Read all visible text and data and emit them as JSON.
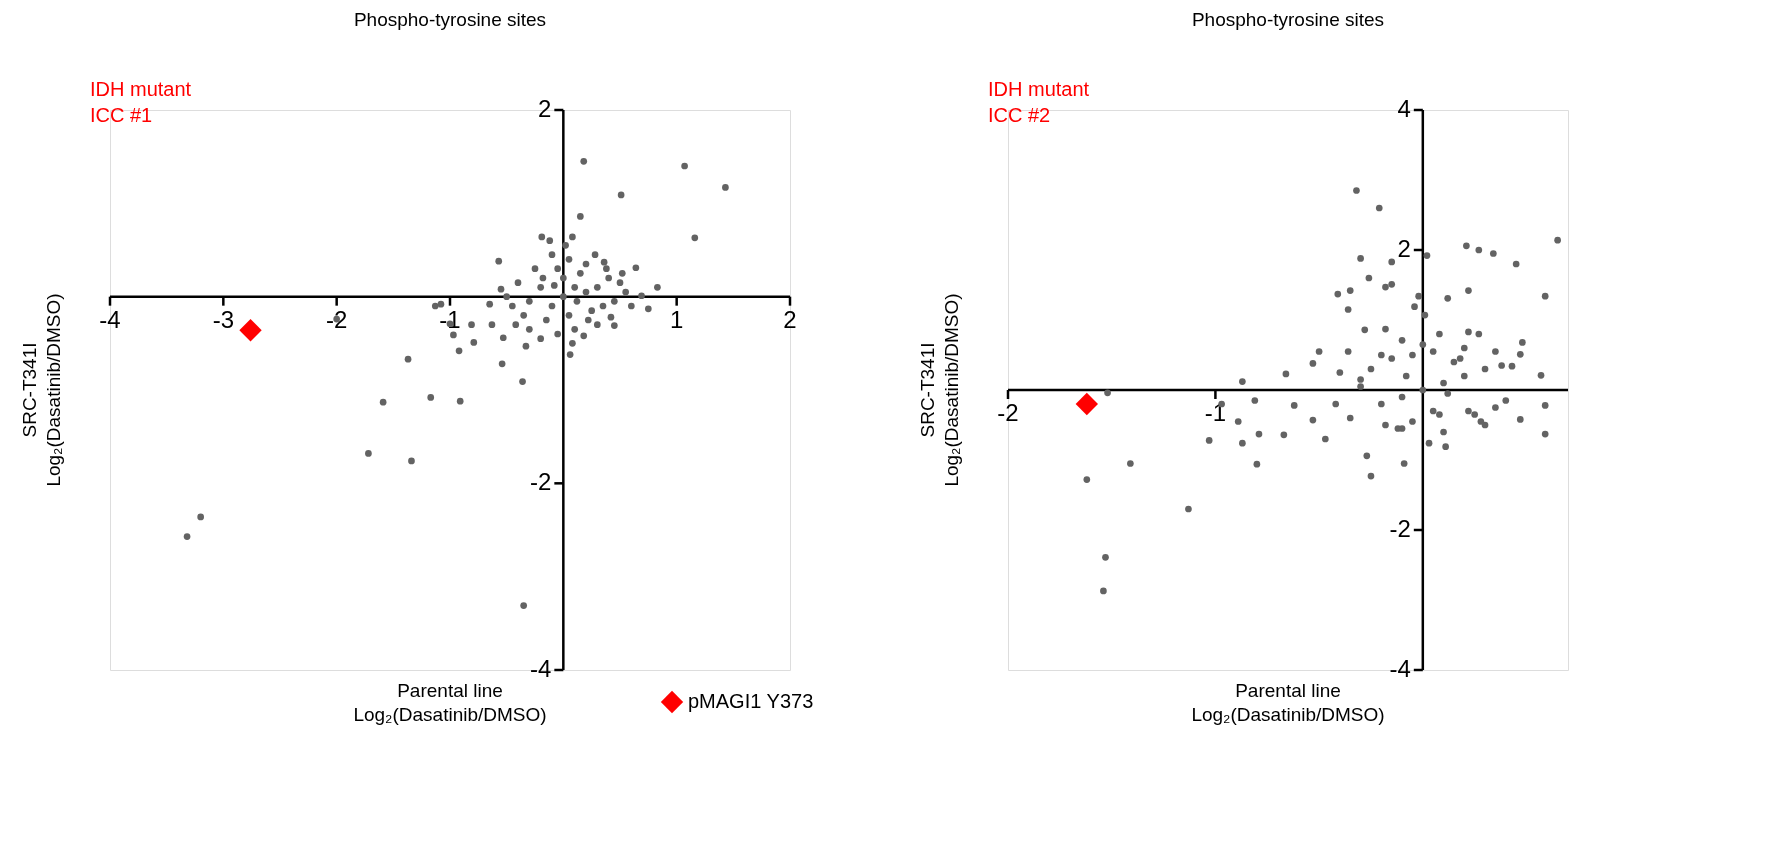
{
  "chart_data": [
    {
      "type": "scatter",
      "title": "Phospho-tyrosine sites",
      "xlabel": "Parental line\nLog₂(Dasatinib/DMSO)",
      "ylabel": "SRC-T341I\nLog₂(Dasatinib/DMSO)",
      "annotations": [
        "IDH mutant\nICC #1"
      ],
      "xlim": [
        -4,
        2
      ],
      "ylim": [
        -4,
        2
      ],
      "xticks": [
        -4,
        -3,
        -2,
        -1,
        1,
        2
      ],
      "yticks": [
        -4,
        -2,
        2
      ],
      "grid": false,
      "legend": "bottom right",
      "series": [
        {
          "color": "#636363",
          "marker": "circle",
          "x": [
            0.18,
            1.07,
            1.43,
            0.51,
            0.15,
            1.16,
            -0.19,
            0.08,
            -0.57,
            0.64,
            0.83,
            0.36,
            0.75,
            0.69,
            0.45,
            -0.65,
            -0.55,
            -1.13,
            -1.08,
            -2.0,
            -1.0,
            -0.97,
            -0.81,
            -0.79,
            -0.92,
            -0.63,
            -0.53,
            -0.54,
            -0.33,
            -0.36,
            0.06,
            -1.37,
            -1.59,
            -1.17,
            -0.91,
            -1.72,
            -1.34,
            -3.2,
            -3.32,
            -0.35,
            0,
            0.1,
            -0.1,
            0.2,
            -0.2,
            0.05,
            0.3,
            -0.3,
            0.15,
            -0.05,
            0.25,
            -0.15,
            0.4,
            -0.4,
            0.35,
            -0.35,
            0.05,
            -0.1,
            0.2,
            -0.25,
            0.1,
            -0.05,
            0.3,
            -0.3,
            0.5,
            0.55,
            0.45,
            -0.45,
            -0.5,
            0.0,
            0.12,
            -0.08,
            0.22,
            -0.18,
            0.38,
            0.6,
            0.52,
            -0.42,
            0.08,
            -0.2,
            0.02,
            0.28,
            -0.12,
            0.18,
            0.42
          ],
          "values": [
            1.45,
            1.4,
            1.17,
            1.09,
            0.86,
            0.63,
            0.64,
            0.64,
            0.38,
            0.31,
            0.1,
            0.37,
            -0.13,
            0.01,
            -0.31,
            -0.08,
            0.08,
            -0.1,
            -0.08,
            -0.24,
            -0.29,
            -0.41,
            -0.3,
            -0.49,
            -0.58,
            -0.3,
            -0.44,
            -0.72,
            -0.53,
            -0.91,
            -0.62,
            -0.67,
            -1.13,
            -1.08,
            -1.12,
            -1.68,
            -1.76,
            -2.36,
            -2.57,
            -3.31,
            0,
            0.1,
            -0.1,
            0.05,
            0.1,
            -0.2,
            0.1,
            -0.05,
            0.25,
            0.3,
            -0.15,
            -0.25,
            0.2,
            0.15,
            -0.1,
            -0.2,
            0.4,
            0.45,
            0.35,
            0.3,
            -0.35,
            -0.4,
            -0.3,
            -0.35,
            0.15,
            0.05,
            -0.05,
            -0.1,
            0.0,
            0.2,
            -0.05,
            0.12,
            -0.25,
            0.2,
            0.3,
            -0.1,
            0.25,
            -0.3,
            -0.5,
            -0.45,
            0.55,
            0.45,
            0.6,
            -0.42,
            -0.22
          ]
        },
        {
          "name": "pMAGI1 Y373",
          "color": "#ff0000",
          "marker": "diamond",
          "x": [
            -2.76
          ],
          "values": [
            -0.36
          ]
        }
      ]
    },
    {
      "type": "scatter",
      "title": "Phospho-tyrosine sites",
      "xlabel": "Parental line\nLog₂(Dasatinib/DMSO)",
      "ylabel": "SRC-T341I\nLog₂(Dasatinib/DMSO)",
      "annotations": [
        "IDH mutant\nICC #2"
      ],
      "xlim": [
        -2,
        0.7
      ],
      "ylim": [
        -4,
        4
      ],
      "xticks": [
        -2,
        -1
      ],
      "yticks": [
        -4,
        -2,
        2,
        4
      ],
      "grid": false,
      "series": [
        {
          "color": "#636363",
          "marker": "circle",
          "x": [
            -0.32,
            -0.21,
            -0.3,
            -0.15,
            -0.26,
            -0.18,
            -0.15,
            -0.41,
            -0.35,
            -0.36,
            0.02,
            0.21,
            0.27,
            0.34,
            0.45,
            0.65,
            0.22,
            0.12,
            0.59,
            -0.02,
            -0.04,
            0.01,
            -0.28,
            -0.18,
            0.08,
            0.22,
            0.27,
            0.48,
            0.47,
            0.35,
            -0.1,
            -0.36,
            -0.5,
            -0.53,
            -0.66,
            -0.87,
            0.57,
            0.43,
            0.59,
            0.59,
            0.47,
            -0.97,
            -0.81,
            -0.89,
            -1.03,
            -0.87,
            -0.79,
            -0.67,
            -0.47,
            -0.8,
            -1.41,
            -1.52,
            -1.62,
            -1.13,
            -1.53,
            -1.54,
            -0.27,
            -0.25,
            -0.09,
            0.11,
            0.03,
            -0.62,
            -0.53,
            0,
            0.1,
            -0.1,
            0.2,
            -0.2,
            0.05,
            0.3,
            -0.3,
            0.15,
            -0.05,
            0.25,
            -0.15,
            0.35,
            -0.35,
            0.05,
            -0.1,
            0.2,
            -0.25,
            0.1,
            -0.05,
            0.3,
            -0.3,
            0.4,
            -0.4,
            0.0,
            0.12,
            -0.08,
            0.22,
            -0.18,
            0.38,
            -0.42,
            0.08,
            -0.2,
            0.28,
            -0.12,
            0.18
          ],
          "values": [
            2.85,
            2.6,
            1.88,
            1.83,
            1.6,
            1.47,
            1.51,
            1.37,
            1.42,
            1.15,
            1.92,
            2.06,
            2.0,
            1.95,
            1.8,
            2.14,
            1.42,
            1.31,
            1.34,
            1.34,
            1.19,
            1.07,
            0.86,
            0.87,
            0.8,
            0.83,
            0.8,
            0.68,
            0.51,
            0.55,
            0.71,
            0.55,
            0.55,
            0.38,
            0.23,
            0.12,
            0.21,
            0.34,
            -0.22,
            -0.63,
            -0.42,
            -0.2,
            -0.15,
            -0.45,
            -0.72,
            -0.76,
            -0.63,
            -0.64,
            -0.7,
            -1.06,
            -1.05,
            -0.04,
            -1.28,
            -1.7,
            -2.39,
            -2.87,
            -0.94,
            -1.23,
            -1.05,
            -0.81,
            -0.76,
            -0.22,
            -0.43,
            0,
            0.1,
            -0.1,
            0.2,
            -0.2,
            -0.3,
            0.3,
            0.15,
            0.4,
            -0.45,
            -0.35,
            0.45,
            -0.25,
            -0.4,
            0.55,
            -0.55,
            0.6,
            0.3,
            -0.6,
            0.5,
            -0.5,
            0.05,
            -0.15,
            0.25,
            0.65,
            -0.05,
            0.2,
            -0.3,
            -0.5,
            0.35,
            -0.2,
            -0.35,
            0.5,
            -0.45,
            -0.55,
            0.45
          ]
        },
        {
          "color": "#ff0000",
          "marker": "diamond",
          "x": [
            -1.62
          ],
          "values": [
            -0.2
          ]
        }
      ]
    }
  ]
}
